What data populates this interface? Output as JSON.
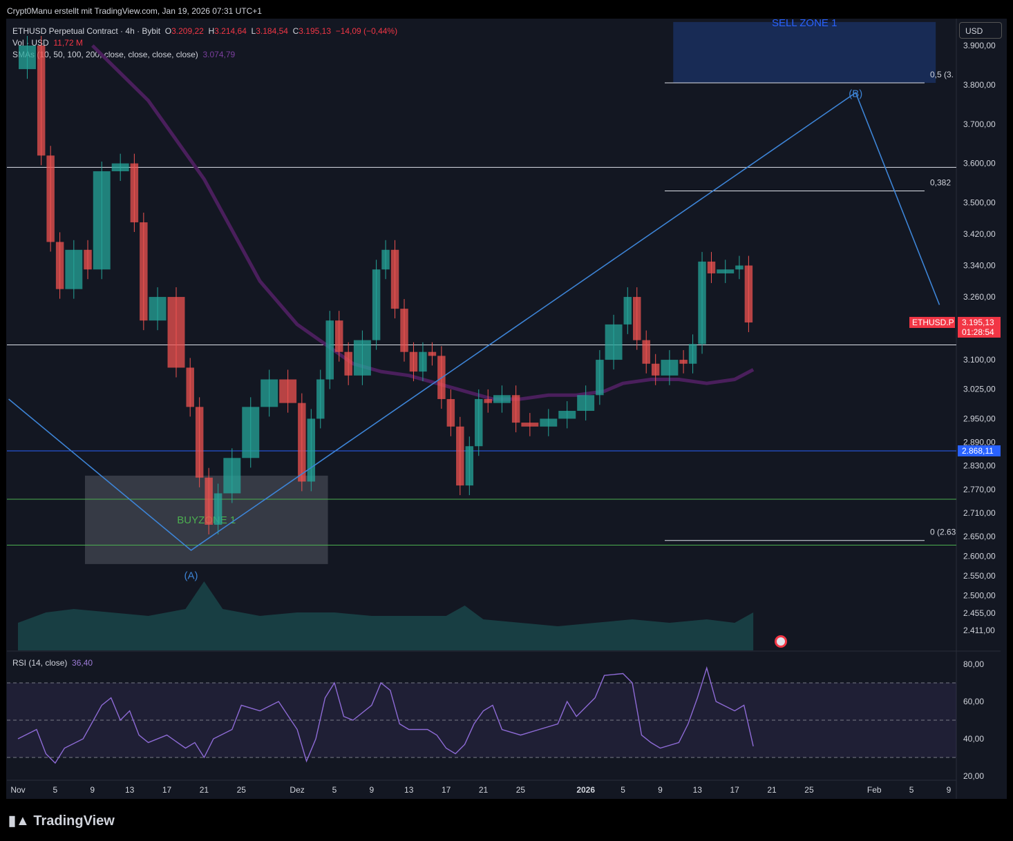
{
  "header": {
    "credit": "Crypt0Manu erstellt mit TradingView.com, Jan 19, 2026 07:31 UTC+1",
    "logo": "TradingView"
  },
  "legend": {
    "symbol": "ETHUSD Perpetual Contract · 4h · Bybit",
    "o_label": "O",
    "o_value": "3.209,22",
    "h_label": "H",
    "h_value": "3.214,64",
    "l_label": "L",
    "l_value": "3.184,54",
    "c_label": "C",
    "c_value": "3.195,13",
    "change": "−14,09 (−0,44%)",
    "vol_label": "Vol · USD",
    "vol_value": "11,72 M",
    "sma_label": "SMAs (10, 50, 100, 200, close, close, close, close)",
    "sma_value": "3.074,79"
  },
  "rsi": {
    "label": "RSI (14, close)",
    "value": "36,40"
  },
  "currency_button": "USD",
  "colors": {
    "background": "#131722",
    "up": "#26a69a",
    "down": "#ef5350",
    "sma": "#4a1f5c",
    "wave": "#3d84d6",
    "rsi": "#8e6bd6",
    "buyzone": "#4caf50"
  },
  "chart_data": {
    "type": "candlestick",
    "symbol": "ETHUSD.P",
    "interval": "4h",
    "y_range": [
      2380,
      3960
    ],
    "y_ticks": [
      {
        "v": 3900,
        "label": "3.900,00"
      },
      {
        "v": 3800,
        "label": "3.800,00"
      },
      {
        "v": 3700,
        "label": "3.700,00"
      },
      {
        "v": 3600,
        "label": "3.600,00"
      },
      {
        "v": 3500,
        "label": "3.500,00"
      },
      {
        "v": 3420,
        "label": "3.420,00"
      },
      {
        "v": 3340,
        "label": "3.340,00"
      },
      {
        "v": 3260,
        "label": "3.260,00"
      },
      {
        "v": 3100,
        "label": "3.100,00"
      },
      {
        "v": 3025,
        "label": "3.025,00"
      },
      {
        "v": 2950,
        "label": "2.950,00"
      },
      {
        "v": 2890,
        "label": "2.890,00"
      },
      {
        "v": 2830,
        "label": "2.830,00"
      },
      {
        "v": 2770,
        "label": "2.770,00"
      },
      {
        "v": 2710,
        "label": "2.710,00"
      },
      {
        "v": 2650,
        "label": "2.650,00"
      },
      {
        "v": 2600,
        "label": "2.600,00"
      },
      {
        "v": 2550,
        "label": "2.550,00"
      },
      {
        "v": 2500,
        "label": "2.500,00"
      },
      {
        "v": 2455,
        "label": "2.455,00"
      },
      {
        "v": 2411,
        "label": "2.411,00"
      }
    ],
    "x_ticks": [
      {
        "d": 0,
        "label": "Nov"
      },
      {
        "d": 4,
        "label": "5"
      },
      {
        "d": 8,
        "label": "9"
      },
      {
        "d": 12,
        "label": "13"
      },
      {
        "d": 16,
        "label": "17"
      },
      {
        "d": 20,
        "label": "21"
      },
      {
        "d": 24,
        "label": "25"
      },
      {
        "d": 30,
        "label": "Dez"
      },
      {
        "d": 34,
        "label": "5"
      },
      {
        "d": 38,
        "label": "9"
      },
      {
        "d": 42,
        "label": "13"
      },
      {
        "d": 46,
        "label": "17"
      },
      {
        "d": 50,
        "label": "21"
      },
      {
        "d": 54,
        "label": "25"
      },
      {
        "d": 61,
        "label": "2026",
        "bold": true
      },
      {
        "d": 65,
        "label": "5"
      },
      {
        "d": 69,
        "label": "9"
      },
      {
        "d": 73,
        "label": "13"
      },
      {
        "d": 77,
        "label": "17"
      },
      {
        "d": 81,
        "label": "21"
      },
      {
        "d": 85,
        "label": "25"
      },
      {
        "d": 92,
        "label": "Feb"
      },
      {
        "d": 96,
        "label": "5"
      },
      {
        "d": 100,
        "label": "9"
      }
    ],
    "price_path": [
      [
        0,
        3840
      ],
      [
        2,
        3900
      ],
      [
        3,
        3620
      ],
      [
        4,
        3400
      ],
      [
        5,
        3280
      ],
      [
        7,
        3380
      ],
      [
        8,
        3330
      ],
      [
        10,
        3580
      ],
      [
        12,
        3600
      ],
      [
        13,
        3450
      ],
      [
        14,
        3200
      ],
      [
        16,
        3260
      ],
      [
        18,
        3080
      ],
      [
        19,
        2980
      ],
      [
        20,
        2800
      ],
      [
        21,
        2680
      ],
      [
        22,
        2760
      ],
      [
        24,
        2850
      ],
      [
        26,
        2980
      ],
      [
        28,
        3050
      ],
      [
        30,
        2990
      ],
      [
        31,
        2790
      ],
      [
        32,
        2950
      ],
      [
        33,
        3050
      ],
      [
        34,
        3200
      ],
      [
        35,
        3120
      ],
      [
        36,
        3060
      ],
      [
        38,
        3150
      ],
      [
        39,
        3330
      ],
      [
        40,
        3380
      ],
      [
        41,
        3230
      ],
      [
        42,
        3120
      ],
      [
        43,
        3070
      ],
      [
        44,
        3120
      ],
      [
        45,
        3110
      ],
      [
        46,
        3000
      ],
      [
        47,
        2930
      ],
      [
        48,
        2780
      ],
      [
        49,
        2880
      ],
      [
        50,
        3000
      ],
      [
        51,
        2990
      ],
      [
        53,
        3010
      ],
      [
        54,
        2940
      ],
      [
        56,
        2930
      ],
      [
        58,
        2950
      ],
      [
        60,
        2970
      ],
      [
        62,
        3010
      ],
      [
        63,
        3100
      ],
      [
        65,
        3190
      ],
      [
        66,
        3260
      ],
      [
        67,
        3150
      ],
      [
        68,
        3090
      ],
      [
        69,
        3060
      ],
      [
        71,
        3100
      ],
      [
        72,
        3090
      ],
      [
        73,
        3140
      ],
      [
        74,
        3350
      ],
      [
        75,
        3320
      ],
      [
        77,
        3330
      ],
      [
        78,
        3340
      ],
      [
        79,
        3195
      ]
    ],
    "last_price": {
      "label": "ETHUSD.P",
      "value": "3.195,13",
      "countdown": "01:28:54",
      "v": 3195.13
    },
    "level_line": {
      "v": 2868.11,
      "label": "2.868,11"
    },
    "horizontal_lines": [
      3590,
      3138,
      2745,
      2628
    ],
    "fibonacci": [
      {
        "v": 3805,
        "label": "0,5 (3."
      },
      {
        "v": 3530,
        "label": "0,382"
      },
      {
        "v": 2640,
        "label": "0 (2.63"
      }
    ],
    "wave_path": [
      [
        -1,
        3000
      ],
      [
        18.6,
        2615
      ],
      [
        90,
        3780
      ],
      [
        99,
        3240
      ]
    ],
    "wave_labels": [
      {
        "d": 18.6,
        "v": 2595,
        "label": "(A)"
      },
      {
        "d": 90,
        "v": 3790,
        "label": "(B)"
      }
    ],
    "zones": [
      {
        "label": "BUYZONE 1",
        "d0": 7.2,
        "d1": 33.3,
        "v0": 2580,
        "v1": 2805
      },
      {
        "label": "SELL ZONE 1",
        "d0": 70.4,
        "d1": 98.6,
        "v0": 3805,
        "v1": 3960
      }
    ],
    "sma200_path": [
      [
        8,
        3900
      ],
      [
        11,
        3830
      ],
      [
        14,
        3760
      ],
      [
        17,
        3660
      ],
      [
        20,
        3560
      ],
      [
        23,
        3430
      ],
      [
        26,
        3300
      ],
      [
        30,
        3190
      ],
      [
        33,
        3140
      ],
      [
        36,
        3090
      ],
      [
        39,
        3070
      ],
      [
        42,
        3060
      ],
      [
        45,
        3040
      ],
      [
        48,
        3020
      ],
      [
        51,
        3000
      ],
      [
        54,
        3000
      ],
      [
        57,
        3010
      ],
      [
        60,
        3010
      ],
      [
        63,
        3020
      ],
      [
        65,
        3040
      ],
      [
        68,
        3050
      ],
      [
        71,
        3050
      ],
      [
        74,
        3040
      ],
      [
        77,
        3050
      ],
      [
        79,
        3075
      ]
    ],
    "volume_path": [
      [
        0,
        40
      ],
      [
        3,
        55
      ],
      [
        6,
        60
      ],
      [
        10,
        55
      ],
      [
        14,
        50
      ],
      [
        18,
        60
      ],
      [
        20,
        100
      ],
      [
        22,
        60
      ],
      [
        26,
        50
      ],
      [
        30,
        55
      ],
      [
        34,
        55
      ],
      [
        38,
        50
      ],
      [
        42,
        50
      ],
      [
        46,
        50
      ],
      [
        48,
        65
      ],
      [
        50,
        45
      ],
      [
        54,
        40
      ],
      [
        58,
        35
      ],
      [
        62,
        40
      ],
      [
        66,
        45
      ],
      [
        70,
        40
      ],
      [
        74,
        45
      ],
      [
        77,
        40
      ],
      [
        79,
        55
      ]
    ],
    "rsi_y_range": [
      15,
      85
    ],
    "rsi_ticks": [
      {
        "v": 80,
        "label": "80,00"
      },
      {
        "v": 60,
        "label": "60,00"
      },
      {
        "v": 40,
        "label": "40,00"
      },
      {
        "v": 20,
        "label": "20,00"
      }
    ],
    "rsi_band": [
      30,
      70
    ],
    "rsi_path": [
      [
        0,
        40
      ],
      [
        2,
        45
      ],
      [
        3,
        32
      ],
      [
        4,
        27
      ],
      [
        5,
        35
      ],
      [
        7,
        40
      ],
      [
        9,
        58
      ],
      [
        10,
        62
      ],
      [
        11,
        50
      ],
      [
        12,
        55
      ],
      [
        13,
        42
      ],
      [
        14,
        38
      ],
      [
        16,
        42
      ],
      [
        18,
        35
      ],
      [
        19,
        38
      ],
      [
        20,
        30
      ],
      [
        21,
        40
      ],
      [
        23,
        45
      ],
      [
        24,
        58
      ],
      [
        26,
        55
      ],
      [
        28,
        60
      ],
      [
        30,
        45
      ],
      [
        31,
        28
      ],
      [
        32,
        40
      ],
      [
        33,
        62
      ],
      [
        34,
        70
      ],
      [
        35,
        52
      ],
      [
        36,
        50
      ],
      [
        38,
        58
      ],
      [
        39,
        70
      ],
      [
        40,
        66
      ],
      [
        41,
        48
      ],
      [
        42,
        45
      ],
      [
        44,
        45
      ],
      [
        45,
        42
      ],
      [
        46,
        35
      ],
      [
        47,
        32
      ],
      [
        48,
        37
      ],
      [
        49,
        48
      ],
      [
        50,
        55
      ],
      [
        51,
        58
      ],
      [
        52,
        45
      ],
      [
        54,
        42
      ],
      [
        56,
        45
      ],
      [
        58,
        48
      ],
      [
        59,
        60
      ],
      [
        60,
        52
      ],
      [
        62,
        62
      ],
      [
        63,
        74
      ],
      [
        65,
        75
      ],
      [
        66,
        70
      ],
      [
        67,
        42
      ],
      [
        68,
        38
      ],
      [
        69,
        35
      ],
      [
        71,
        38
      ],
      [
        72,
        48
      ],
      [
        73,
        62
      ],
      [
        74,
        78
      ],
      [
        75,
        60
      ],
      [
        77,
        55
      ],
      [
        78,
        58
      ],
      [
        79,
        36
      ]
    ]
  }
}
